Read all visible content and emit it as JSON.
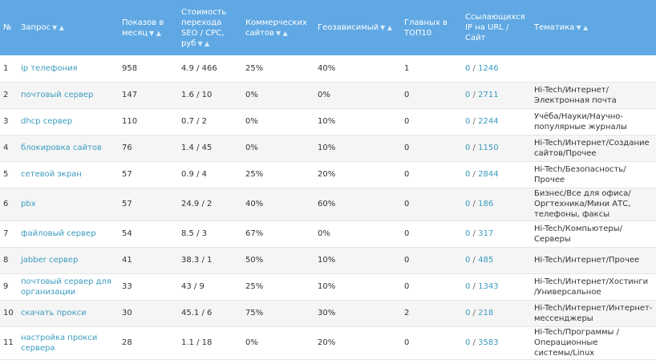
{
  "header": {
    "num": "№",
    "query": "Запрос",
    "shows": "Показов в месяц",
    "cost": "Стоимость перехода SEO / CPC, руб",
    "commercial": "Коммерческих сайтов",
    "geo": "Геозависимый",
    "top10": "Главных в ТОП10",
    "links": "Ссылающихся IP на URL / Сайт",
    "topic": "Тематика",
    "sort_down": "▼",
    "sort_up": "▲"
  },
  "rows": [
    {
      "num": "1",
      "query": "ip телефония",
      "shows": "958",
      "cost": "4.9 / 466",
      "commercial": "25%",
      "geo": "40%",
      "top10": "1",
      "links_url": "0",
      "links_site": "1246",
      "topic": ""
    },
    {
      "num": "2",
      "query": "почтовый сервер",
      "shows": "147",
      "cost": "1.6 / 10",
      "commercial": "0%",
      "geo": "0%",
      "top10": "0",
      "links_url": "0",
      "links_site": "2711",
      "topic": "Hi-Tech/Интернет/Электронная почта"
    },
    {
      "num": "3",
      "query": "dhcp сервер",
      "shows": "110",
      "cost": "0.7 / 2",
      "commercial": "0%",
      "geo": "10%",
      "top10": "0",
      "links_url": "0",
      "links_site": "2244",
      "topic": "Учёба/Науки/Научно-популярные журналы"
    },
    {
      "num": "4",
      "query": "блокировка сайтов",
      "shows": "76",
      "cost": "1.4 / 45",
      "commercial": "0%",
      "geo": "10%",
      "top10": "0",
      "links_url": "0",
      "links_site": "1150",
      "topic": "Hi-Tech/Интернет/Создание сайтов/Прочее"
    },
    {
      "num": "5",
      "query": "сетевой экран",
      "shows": "57",
      "cost": "0.9 / 4",
      "commercial": "25%",
      "geo": "20%",
      "top10": "0",
      "links_url": "0",
      "links_site": "2844",
      "topic": "Hi-Tech/Безопасность/Прочее"
    },
    {
      "num": "6",
      "query": "pbx",
      "shows": "57",
      "cost": "24.9 / 2",
      "commercial": "40%",
      "geo": "60%",
      "top10": "0",
      "links_url": "0",
      "links_site": "186",
      "topic": "Бизнес/Все для офиса/Оргтехника/Мини АТС, телефоны, факсы"
    },
    {
      "num": "7",
      "query": "файловый сервер",
      "shows": "54",
      "cost": "8.5 / 3",
      "commercial": "67%",
      "geo": "0%",
      "top10": "0",
      "links_url": "0",
      "links_site": "317",
      "topic": "Hi-Tech/Компьютеры/Серверы"
    },
    {
      "num": "8",
      "query": "jabber сервер",
      "shows": "41",
      "cost": "38.3 / 1",
      "commercial": "50%",
      "geo": "10%",
      "top10": "0",
      "links_url": "0",
      "links_site": "485",
      "topic": "Hi-Tech/Интернет/Прочее"
    },
    {
      "num": "9",
      "query": "почтовый сервер для организации",
      "shows": "33",
      "cost": "43 / 9",
      "commercial": "25%",
      "geo": "10%",
      "top10": "0",
      "links_url": "0",
      "links_site": "1343",
      "topic": "Hi-Tech/Интернет/Хостинги /Универсальное"
    },
    {
      "num": "10",
      "query": "скачать прокси",
      "shows": "30",
      "cost": "45.1 / 6",
      "commercial": "75%",
      "geo": "30%",
      "top10": "2",
      "links_url": "0",
      "links_site": "218",
      "topic": "Hi-Tech/Интернет/Интернет-мессенджеры"
    },
    {
      "num": "11",
      "query": "настройка прокси сервера",
      "shows": "28",
      "cost": "1.1 / 18",
      "commercial": "0%",
      "geo": "20%",
      "top10": "0",
      "links_url": "0",
      "links_site": "3583",
      "topic": "Hi-Tech/Программы /Операционные системы/Linux"
    }
  ]
}
